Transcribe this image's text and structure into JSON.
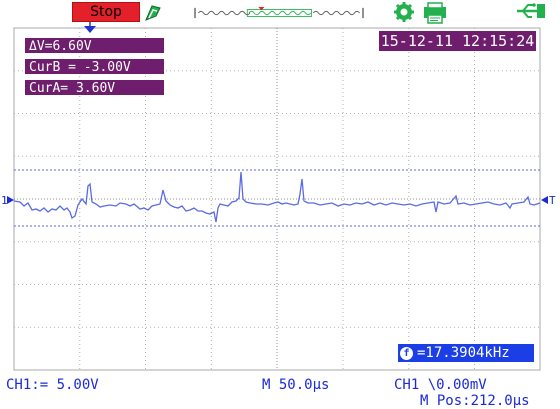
{
  "status": {
    "run_state": "Stop",
    "datetime": "15-12-11 12:15:24"
  },
  "measurements": {
    "delta_v": "ΔV=6.60V",
    "cursor_b": "CurB = -3.00V",
    "cursor_a": "CurA= 3.60V"
  },
  "frequency": {
    "icon": "counter-icon",
    "icon_glyph": "f",
    "value": "=17.3904kHz"
  },
  "channel": {
    "marker_label": "1",
    "trigger_marker_label": "T",
    "ch1_scale": "CH1:= 5.00V",
    "trigger_info": "CH1 \\0.00mV"
  },
  "timebase": {
    "scale": "M 50.0µs",
    "position": "M Pos:212.0µs"
  },
  "colors": {
    "stop_bg": "#e4202a",
    "panel_bg": "#6e1e6c",
    "freq_bg": "#1b3ee6",
    "trace": "#5a6be6",
    "grid": "#a0a0a0",
    "text_blue": "#1a2ad8",
    "icon_green": "#22b14c"
  },
  "icons": [
    "run-state-icon",
    "trigger-position-icon",
    "settings-icon",
    "print-icon",
    "usb-icon"
  ]
}
